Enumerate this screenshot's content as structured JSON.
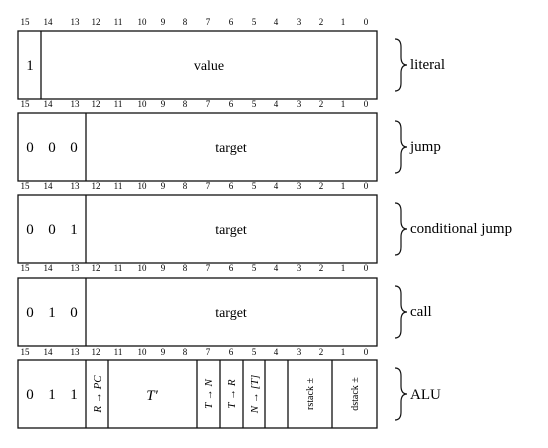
{
  "bit_numbers": [
    "15",
    "14",
    "13",
    "12",
    "11",
    "10",
    "9",
    "8",
    "7",
    "6",
    "5",
    "4",
    "3",
    "2",
    "1",
    "0"
  ],
  "rows": [
    {
      "id": "literal",
      "prefix": [
        "1"
      ],
      "field": "value",
      "label": "literal"
    },
    {
      "id": "jump",
      "prefix": [
        "0",
        "0",
        "0"
      ],
      "field": "target",
      "label": "jump"
    },
    {
      "id": "conditional-jump",
      "prefix": [
        "0",
        "0",
        "1"
      ],
      "field": "target",
      "label": "conditional jump"
    },
    {
      "id": "call",
      "prefix": [
        "0",
        "1",
        "0"
      ],
      "field": "target",
      "label": "call"
    },
    {
      "id": "alu",
      "prefix": [
        "0",
        "1",
        "1"
      ],
      "label": "ALU",
      "fields": {
        "r_to_pc": "R → PC",
        "t_prime": "T′",
        "t_to_n": "T → N",
        "t_to_r": "T → R",
        "n_to_t": "N → [T]",
        "rstack": "rstack ±",
        "dstack": "dstack ±"
      }
    }
  ]
}
